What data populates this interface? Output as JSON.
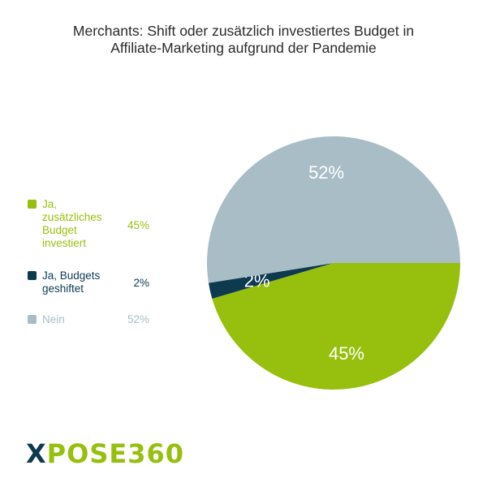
{
  "chart_data": {
    "type": "pie",
    "title": [
      "Merchants: Shift oder zusätzlich investiertes Budget in",
      "Affiliate-Marketing aufgrund der Pandemie"
    ],
    "slices": [
      {
        "label": [
          "Ja,",
          "zusätzliches",
          "Budget",
          "investiert"
        ],
        "value": 45,
        "display": "45%",
        "color": "#97bf0d"
      },
      {
        "label": [
          "Ja, Budgets",
          "geshiftet"
        ],
        "value": 2,
        "display": "2%",
        "color": "#0e3a50"
      },
      {
        "label": [
          "Nein"
        ],
        "value": 52,
        "display": "52%",
        "color": "#a9bdc6"
      }
    ],
    "legend_position": "left"
  },
  "logo": {
    "x": "X",
    "rest": "POSE360"
  }
}
